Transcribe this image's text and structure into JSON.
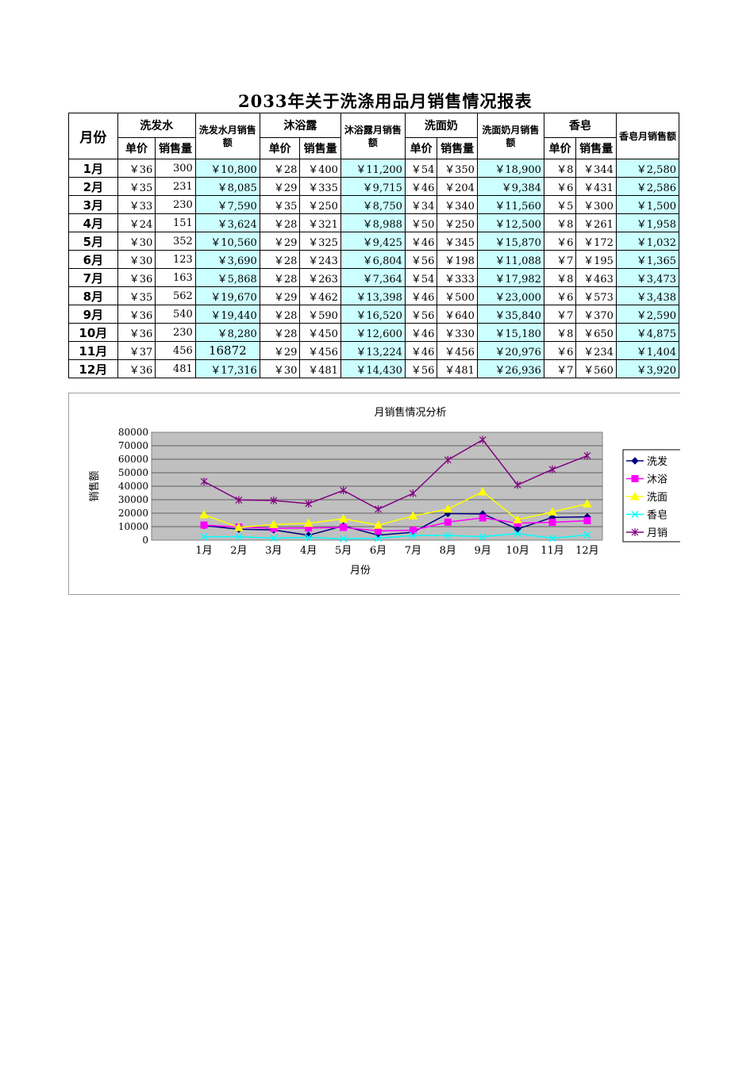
{
  "title": "2033年关于洗涤用品月销售情况报表",
  "header": {
    "month": "月份",
    "groups": [
      "洗发水",
      "沐浴露",
      "洗面奶",
      "香皂"
    ],
    "totals": [
      "洗发水月销售额",
      "沐浴露月销售额",
      "洗面奶月销售额",
      "香皂月销售额"
    ],
    "unit_price": "单价",
    "quantity": "销售量"
  },
  "rows": [
    {
      "month": "1月",
      "c": [
        "￥36",
        "300",
        "￥10,800",
        "￥28",
        "￥400",
        "￥11,200",
        "￥54",
        "￥350",
        "￥18,900",
        "￥8",
        "￥344",
        "￥2,580"
      ]
    },
    {
      "month": "2月",
      "c": [
        "￥35",
        "231",
        "￥8,085",
        "￥29",
        "￥335",
        "￥9,715",
        "￥46",
        "￥204",
        "￥9,384",
        "￥6",
        "￥431",
        "￥2,586"
      ]
    },
    {
      "month": "3月",
      "c": [
        "￥33",
        "230",
        "￥7,590",
        "￥35",
        "￥250",
        "￥8,750",
        "￥34",
        "￥340",
        "￥11,560",
        "￥5",
        "￥300",
        "￥1,500"
      ]
    },
    {
      "month": "4月",
      "c": [
        "￥24",
        "151",
        "￥3,624",
        "￥28",
        "￥321",
        "￥8,988",
        "￥50",
        "￥250",
        "￥12,500",
        "￥8",
        "￥261",
        "￥1,958"
      ]
    },
    {
      "month": "5月",
      "c": [
        "￥30",
        "352",
        "￥10,560",
        "￥29",
        "￥325",
        "￥9,425",
        "￥46",
        "￥345",
        "￥15,870",
        "￥6",
        "￥172",
        "￥1,032"
      ]
    },
    {
      "month": "6月",
      "c": [
        "￥30",
        "123",
        "￥3,690",
        "￥28",
        "￥243",
        "￥6,804",
        "￥56",
        "￥198",
        "￥11,088",
        "￥7",
        "￥195",
        "￥1,365"
      ]
    },
    {
      "month": "7月",
      "c": [
        "￥36",
        "163",
        "￥5,868",
        "￥28",
        "￥263",
        "￥7,364",
        "￥54",
        "￥333",
        "￥17,982",
        "￥8",
        "￥463",
        "￥3,473"
      ]
    },
    {
      "month": "8月",
      "c": [
        "￥35",
        "562",
        "￥19,670",
        "￥29",
        "￥462",
        "￥13,398",
        "￥46",
        "￥500",
        "￥23,000",
        "￥6",
        "￥573",
        "￥3,438"
      ]
    },
    {
      "month": "9月",
      "c": [
        "￥36",
        "540",
        "￥19,440",
        "￥28",
        "￥590",
        "￥16,520",
        "￥56",
        "￥640",
        "￥35,840",
        "￥7",
        "￥370",
        "￥2,590"
      ]
    },
    {
      "month": "10月",
      "c": [
        "￥36",
        "230",
        "￥8,280",
        "￥28",
        "￥450",
        "￥12,600",
        "￥46",
        "￥330",
        "￥15,180",
        "￥8",
        "￥650",
        "￥4,875"
      ]
    },
    {
      "month": "11月",
      "c": [
        "￥37",
        "456",
        "16872",
        "￥29",
        "￥456",
        "￥13,224",
        "￥46",
        "￥456",
        "￥20,976",
        "￥6",
        "￥234",
        "￥1,404"
      ]
    },
    {
      "month": "12月",
      "c": [
        "￥36",
        "481",
        "￥17,316",
        "￥30",
        "￥481",
        "￥14,430",
        "￥56",
        "￥481",
        "￥26,936",
        "￥7",
        "￥560",
        "￥3,920"
      ]
    }
  ],
  "colors": {
    "highlight_cell": "#ccffff",
    "plot_area": "#c0c0c0"
  },
  "chart_data": {
    "type": "line",
    "title": "月销售情况分析",
    "xlabel": "月份",
    "ylabel": "销售额",
    "categories": [
      "1月",
      "2月",
      "3月",
      "4月",
      "5月",
      "6月",
      "7月",
      "8月",
      "9月",
      "10月",
      "11月",
      "12月"
    ],
    "ylim": [
      0,
      80000
    ],
    "yticks": [
      "0",
      "10000",
      "20000",
      "30000",
      "40000",
      "50000",
      "60000",
      "70000",
      "80000"
    ],
    "grid": true,
    "legend_position": "right",
    "series": [
      {
        "name": "洗发",
        "color": "#000080",
        "marker": "diamond",
        "values": [
          10800,
          8085,
          7590,
          3624,
          10560,
          3690,
          5868,
          19670,
          19440,
          8280,
          16872,
          17316
        ]
      },
      {
        "name": "沐浴",
        "color": "#ff00ff",
        "marker": "square",
        "values": [
          11200,
          9715,
          8750,
          8988,
          9425,
          6804,
          7364,
          13398,
          16520,
          12600,
          13224,
          14430
        ]
      },
      {
        "name": "洗面",
        "color": "#ffff00",
        "marker": "triangle",
        "values": [
          18900,
          9384,
          11560,
          12500,
          15870,
          11088,
          17982,
          23000,
          35840,
          15180,
          20976,
          26936
        ]
      },
      {
        "name": "香皂",
        "color": "#00ffff",
        "marker": "x",
        "values": [
          2580,
          2586,
          1500,
          1958,
          1032,
          1365,
          3473,
          3438,
          2590,
          4875,
          1404,
          3920
        ]
      },
      {
        "name": "月销",
        "color": "#800080",
        "marker": "star",
        "values": [
          43480,
          29770,
          29400,
          27070,
          36887,
          22947,
          34687,
          59506,
          74390,
          40935,
          52476,
          62602
        ]
      }
    ]
  }
}
